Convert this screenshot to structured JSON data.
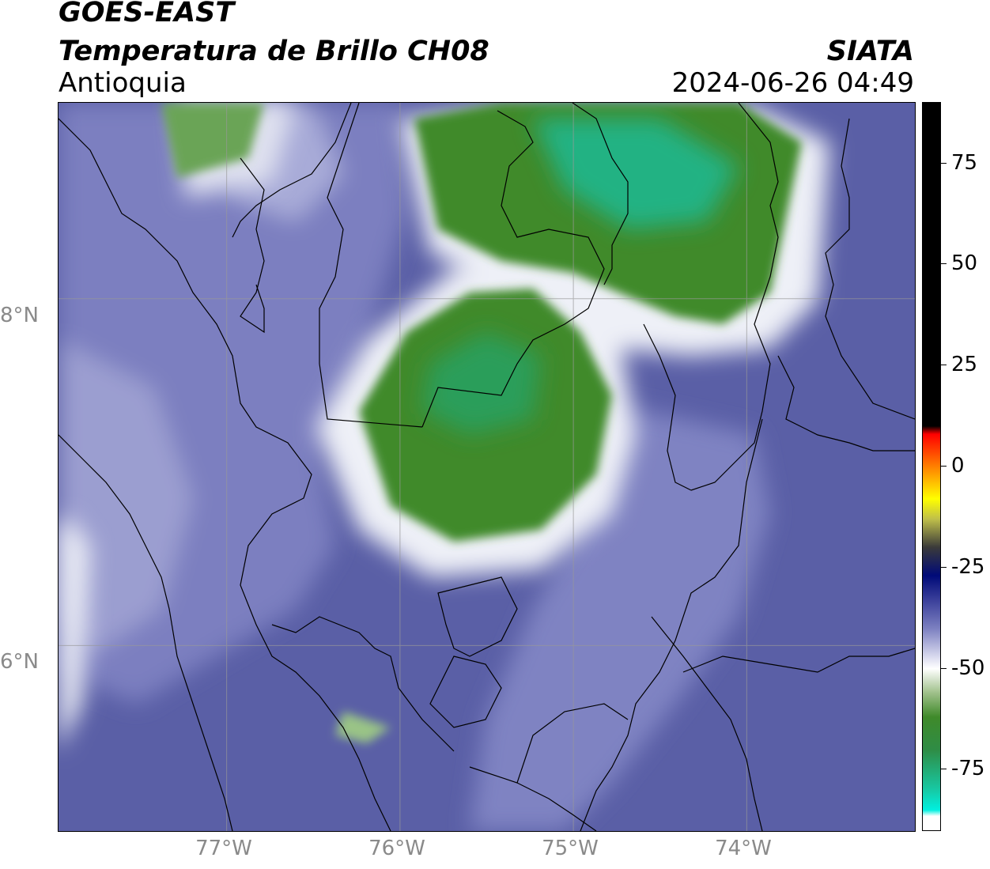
{
  "header": {
    "satellite": "GOES-EAST",
    "product": "Temperatura de Brillo CH08",
    "region": "Antioquia",
    "agency": "SIATA",
    "timestamp": "2024-06-26 04:49"
  },
  "map": {
    "lon_range": [
      -77.97,
      -73.03
    ],
    "lat_range": [
      4.93,
      9.13
    ],
    "lon_ticks": [
      {
        "value": -77,
        "label": "77°W"
      },
      {
        "value": -76,
        "label": "76°W"
      },
      {
        "value": -75,
        "label": "75°W"
      },
      {
        "value": -74,
        "label": "74°W"
      }
    ],
    "lat_ticks": [
      {
        "value": 8,
        "label": "8°N"
      },
      {
        "value": 6,
        "label": "6°N"
      }
    ],
    "grid": true,
    "colors": {
      "background_cold_blue": "#4a4e9c",
      "mid_blue": "#7b7fc0",
      "light_lavender": "#b9bbe0",
      "white": "#f3f3f8",
      "green": "#3f8a2a",
      "cyan_green": "#22b283"
    }
  },
  "colorbar": {
    "range": [
      -90,
      90
    ],
    "ticks": [
      {
        "value": 75,
        "label": "75"
      },
      {
        "value": 50,
        "label": "50"
      },
      {
        "value": 25,
        "label": "25"
      },
      {
        "value": 0,
        "label": "0"
      },
      {
        "value": -25,
        "label": "-25"
      },
      {
        "value": -50,
        "label": "-50"
      },
      {
        "value": -75,
        "label": "-75"
      }
    ],
    "stops": [
      {
        "value": 90,
        "color": "#000000"
      },
      {
        "value": 10,
        "color": "#000000"
      },
      {
        "value": 8,
        "color": "#ff0000"
      },
      {
        "value": 0,
        "color": "#ff8000"
      },
      {
        "value": -8,
        "color": "#ffff00"
      },
      {
        "value": -13,
        "color": "#bfbf4a"
      },
      {
        "value": -20,
        "color": "#3a3a3a"
      },
      {
        "value": -27,
        "color": "#000a78"
      },
      {
        "value": -33,
        "color": "#3a3f9a"
      },
      {
        "value": -40,
        "color": "#7b7fc0"
      },
      {
        "value": -47,
        "color": "#d8d9ee"
      },
      {
        "value": -50,
        "color": "#ffffff"
      },
      {
        "value": -56,
        "color": "#9fc08a"
      },
      {
        "value": -62,
        "color": "#3f8a2a"
      },
      {
        "value": -70,
        "color": "#2f8c45"
      },
      {
        "value": -80,
        "color": "#17c9a4"
      },
      {
        "value": -85,
        "color": "#00f0e0"
      },
      {
        "value": -86.5,
        "color": "#ffffff"
      },
      {
        "value": -90,
        "color": "#ffffff"
      }
    ]
  }
}
